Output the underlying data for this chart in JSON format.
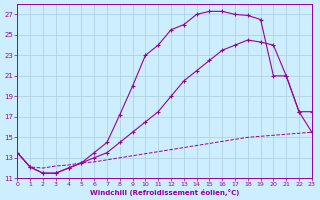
{
  "xlabel": "Windchill (Refroidissement éolien,°C)",
  "bg_color": "#cceeff",
  "grid_color": "#aaccdd",
  "line_color": "#990099",
  "xmin": 0,
  "xmax": 23,
  "ymin": 11,
  "ymax": 28,
  "yticks": [
    11,
    13,
    15,
    17,
    19,
    21,
    23,
    25,
    27
  ],
  "xticks": [
    0,
    1,
    2,
    3,
    4,
    5,
    6,
    7,
    8,
    9,
    10,
    11,
    12,
    13,
    14,
    15,
    16,
    17,
    18,
    19,
    20,
    21,
    22,
    23
  ],
  "series1_x": [
    0,
    1,
    2,
    3,
    4,
    5,
    6,
    7,
    8,
    9,
    10,
    11,
    12,
    13,
    14,
    15,
    16,
    17,
    18,
    19,
    20,
    21,
    22,
    23
  ],
  "series1_y": [
    13.5,
    12.1,
    11.5,
    11.5,
    12.0,
    12.5,
    13.5,
    14.5,
    17.2,
    20.0,
    23.0,
    24.0,
    25.5,
    26.0,
    27.0,
    27.3,
    27.3,
    27.0,
    26.9,
    26.5,
    21.0,
    21.0,
    17.5,
    17.5
  ],
  "series2_x": [
    0,
    1,
    2,
    3,
    4,
    5,
    6,
    7,
    8,
    9,
    10,
    11,
    12,
    13,
    14,
    15,
    16,
    17,
    18,
    19,
    20,
    21,
    22,
    23
  ],
  "series2_y": [
    13.5,
    12.1,
    11.5,
    11.5,
    12.0,
    12.5,
    13.0,
    13.5,
    14.5,
    15.5,
    16.5,
    17.5,
    19.0,
    20.5,
    21.5,
    22.5,
    23.5,
    24.0,
    24.5,
    24.3,
    24.0,
    21.0,
    17.5,
    15.5
  ],
  "series3_x": [
    0,
    1,
    2,
    3,
    4,
    5,
    6,
    7,
    8,
    9,
    10,
    11,
    12,
    13,
    14,
    15,
    16,
    17,
    18,
    19,
    20,
    21,
    22,
    23
  ],
  "series3_y": [
    13.5,
    12.1,
    12.0,
    12.2,
    12.3,
    12.5,
    12.6,
    12.8,
    13.0,
    13.2,
    13.4,
    13.6,
    13.8,
    14.0,
    14.2,
    14.4,
    14.6,
    14.8,
    15.0,
    15.1,
    15.2,
    15.3,
    15.4,
    15.5
  ]
}
